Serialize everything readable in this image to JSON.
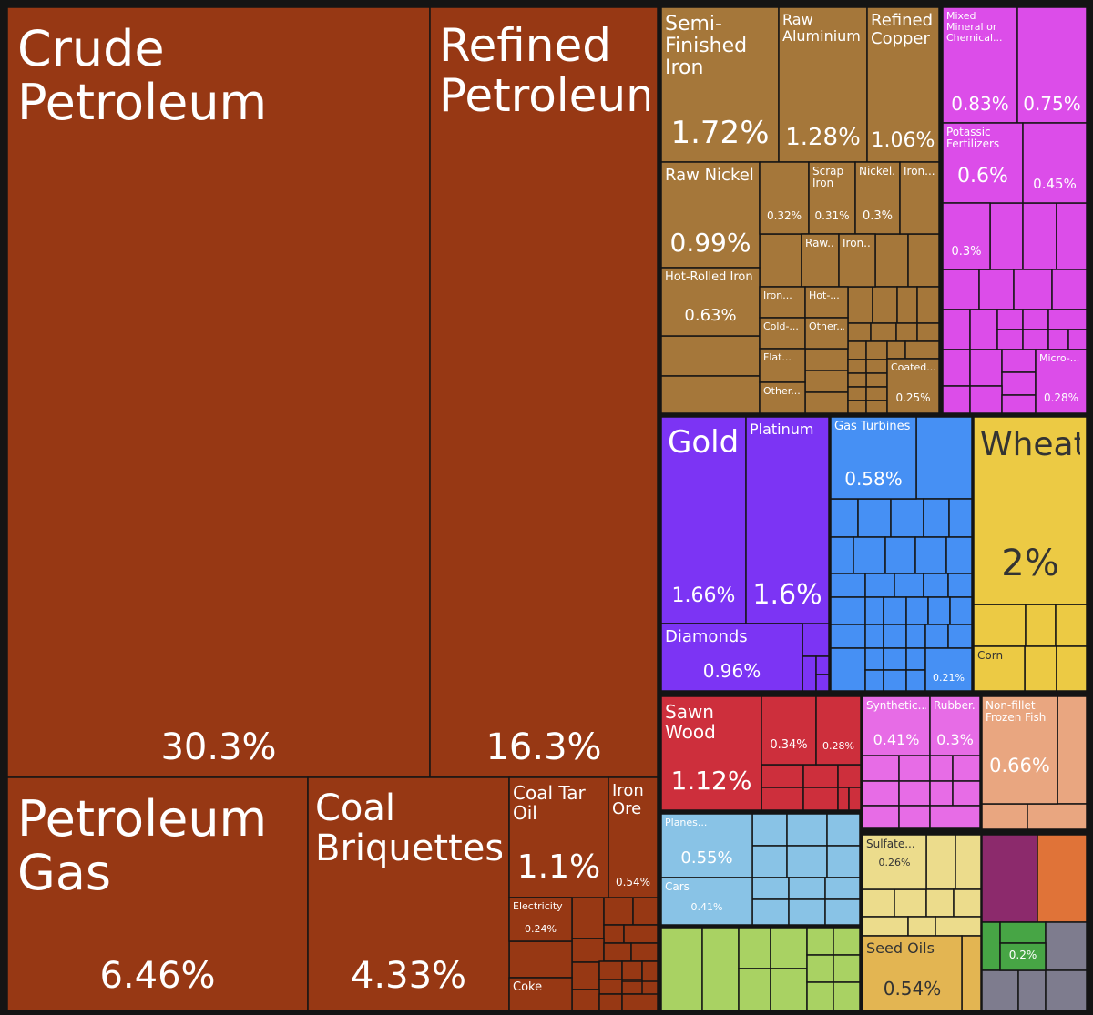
{
  "chart_data": {
    "type": "treemap",
    "title": "",
    "unit": "%",
    "colors": {
      "mineral": "#973814",
      "metal": "#a5773a",
      "chemical": "#dc4de9",
      "precious": "#7c34f4",
      "machine": "#4690f4",
      "vegetable": "#ecca44",
      "wood": "#cd2f3c",
      "plastic": "#e76ce6",
      "animal": "#e9a680",
      "transport": "#89c3e6",
      "stone": "#ecdc8c",
      "foodstuff": "#a9d263",
      "fats": "#e3b552",
      "textile": "#8c2a6c",
      "footwear": "#e07338",
      "instruments": "#47a545",
      "misc": "#7e7c8e",
      "border": "#141414"
    },
    "items": [
      {
        "name": "Crude Petroleum",
        "value": "30.3%",
        "group": "mineral"
      },
      {
        "name": "Refined Petroleum",
        "value": "16.3%",
        "group": "mineral"
      },
      {
        "name": "Petroleum Gas",
        "value": "6.46%",
        "group": "mineral"
      },
      {
        "name": "Coal Briquettes",
        "value": "4.33%",
        "group": "mineral"
      },
      {
        "name": "Coal Tar Oil",
        "value": "1.1%",
        "group": "mineral"
      },
      {
        "name": "Iron Ore",
        "value": "0.54%",
        "group": "mineral"
      },
      {
        "name": "Electricity",
        "value": "0.24%",
        "group": "mineral"
      },
      {
        "name": "Coke",
        "value": "",
        "group": "mineral"
      },
      {
        "name": "Semi-Finished Iron",
        "value": "1.72%",
        "group": "metal"
      },
      {
        "name": "Raw Aluminium",
        "value": "1.28%",
        "group": "metal"
      },
      {
        "name": "Refined Copper",
        "value": "1.06%",
        "group": "metal"
      },
      {
        "name": "Raw Nickel",
        "value": "0.99%",
        "group": "metal"
      },
      {
        "name": "",
        "value": "0.32%",
        "group": "metal"
      },
      {
        "name": "Scrap Iron",
        "value": "0.31%",
        "group": "metal"
      },
      {
        "name": "Nickel...",
        "value": "0.3%",
        "group": "metal"
      },
      {
        "name": "Iron...",
        "value": "",
        "group": "metal"
      },
      {
        "name": "Raw...",
        "value": "",
        "group": "metal"
      },
      {
        "name": "Iron...",
        "value": "",
        "group": "metal"
      },
      {
        "name": "Hot-Rolled Iron",
        "value": "0.63%",
        "group": "metal"
      },
      {
        "name": "Iron...",
        "value": "",
        "group": "metal"
      },
      {
        "name": "Hot-...",
        "value": "",
        "group": "metal"
      },
      {
        "name": "Cold-...",
        "value": "",
        "group": "metal"
      },
      {
        "name": "Other...",
        "value": "",
        "group": "metal"
      },
      {
        "name": "Flat...",
        "value": "",
        "group": "metal"
      },
      {
        "name": "Other...",
        "value": "",
        "group": "metal"
      },
      {
        "name": "Coated...",
        "value": "0.25%",
        "group": "metal"
      },
      {
        "name": "Mixed Mineral or Chemical...",
        "value": "0.83%",
        "group": "chemical"
      },
      {
        "name": "",
        "value": "0.75%",
        "group": "chemical"
      },
      {
        "name": "Potassic Fertilizers",
        "value": "0.6%",
        "group": "chemical"
      },
      {
        "name": "",
        "value": "0.45%",
        "group": "chemical"
      },
      {
        "name": "",
        "value": "0.3%",
        "group": "chemical"
      },
      {
        "name": "Micro-...",
        "value": "0.28%",
        "group": "chemical"
      },
      {
        "name": "Gold",
        "value": "1.66%",
        "group": "precious"
      },
      {
        "name": "Platinum",
        "value": "1.6%",
        "group": "precious"
      },
      {
        "name": "Diamonds",
        "value": "0.96%",
        "group": "precious"
      },
      {
        "name": "Gas Turbines",
        "value": "0.58%",
        "group": "machine"
      },
      {
        "name": "",
        "value": "0.21%",
        "group": "machine"
      },
      {
        "name": "Wheat",
        "value": "2%",
        "group": "vegetable"
      },
      {
        "name": "Corn",
        "value": "",
        "group": "vegetable"
      },
      {
        "name": "Sawn Wood",
        "value": "1.12%",
        "group": "wood"
      },
      {
        "name": "",
        "value": "0.34%",
        "group": "wood"
      },
      {
        "name": "",
        "value": "0.28%",
        "group": "wood"
      },
      {
        "name": "Synthetic...",
        "value": "0.41%",
        "group": "plastic"
      },
      {
        "name": "Rubber...",
        "value": "0.3%",
        "group": "plastic"
      },
      {
        "name": "Non-fillet Frozen Fish",
        "value": "0.66%",
        "group": "animal"
      },
      {
        "name": "Planes...",
        "value": "0.55%",
        "group": "transport"
      },
      {
        "name": "Cars",
        "value": "0.41%",
        "group": "transport"
      },
      {
        "name": "Sulfate...",
        "value": "0.26%",
        "group": "stone"
      },
      {
        "name": "Seed Oils",
        "value": "0.54%",
        "group": "fats"
      },
      {
        "name": "",
        "value": "0.2%",
        "group": "instruments"
      }
    ]
  }
}
